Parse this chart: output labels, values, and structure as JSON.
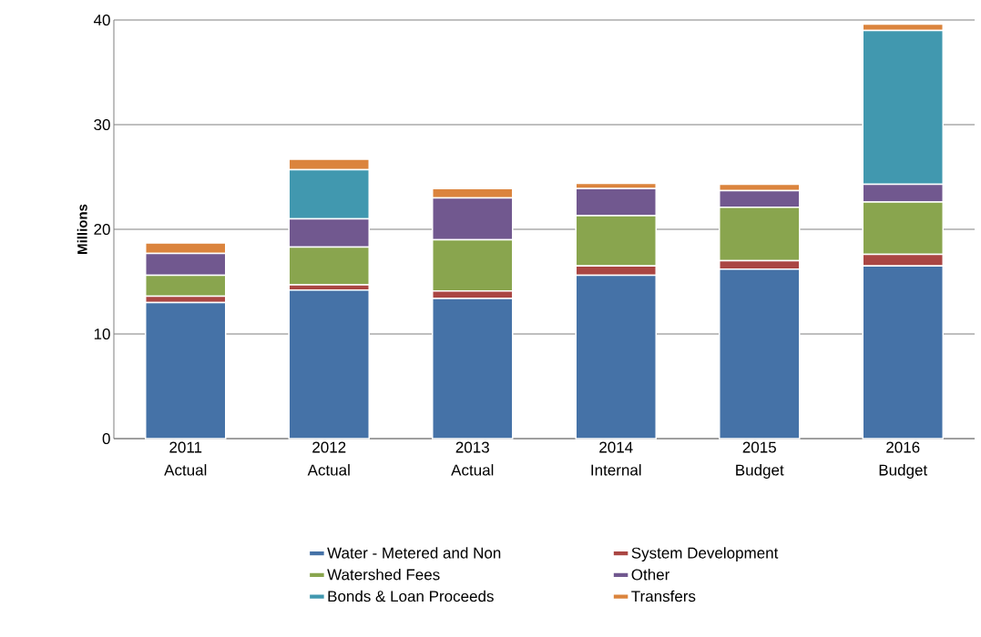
{
  "chart_data": {
    "type": "bar",
    "stacked": true,
    "ylabel": "Millions",
    "categories": [
      "2011 Actual",
      "2012 Actual",
      "2013 Actual",
      "2014 Internal",
      "2015 Budget",
      "2016 Budget"
    ],
    "ylim": [
      0,
      40
    ],
    "yticks": [
      0,
      10,
      20,
      30,
      40
    ],
    "grid": "y",
    "legend": "bottom",
    "series": [
      {
        "name": "Water - Metered and Non",
        "color": "#4572a7",
        "values": [
          13.0,
          14.2,
          13.4,
          15.6,
          16.2,
          16.5
        ]
      },
      {
        "name": "System Development",
        "color": "#aa4643",
        "values": [
          0.6,
          0.5,
          0.7,
          0.9,
          0.8,
          1.1
        ]
      },
      {
        "name": "Watershed Fees",
        "color": "#89a54e",
        "values": [
          2.0,
          3.6,
          4.9,
          4.8,
          5.1,
          5.0
        ]
      },
      {
        "name": "Other",
        "color": "#71588f",
        "values": [
          2.1,
          2.7,
          4.0,
          2.6,
          1.6,
          1.7
        ]
      },
      {
        "name": "Bonds & Loan Proceeds",
        "color": "#4198af",
        "values": [
          0,
          4.7,
          0,
          0,
          0,
          14.7
        ]
      },
      {
        "name": "Transfers",
        "color": "#db843d",
        "values": [
          1.0,
          1.0,
          0.9,
          0.5,
          0.6,
          0.6
        ]
      }
    ]
  }
}
